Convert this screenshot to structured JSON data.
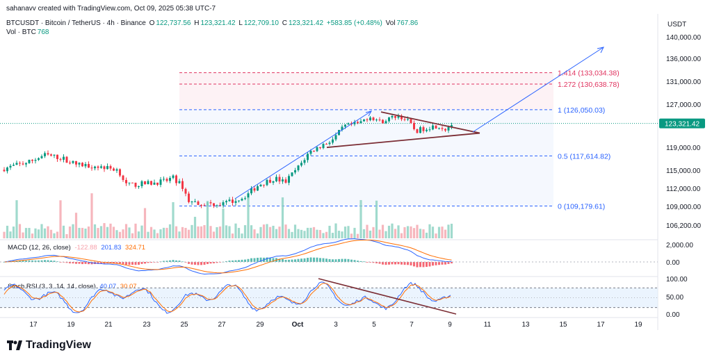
{
  "credit": "sahanavv created with TradingView.com, Oct 09, 2025 05:38 UTC-7",
  "header": {
    "symbol": "BTCUSDT · Bitcoin / TetherUS · 4h · Binance",
    "o_label": "O",
    "o": "122,737.56",
    "h_label": "H",
    "h": "123,321.42",
    "l_label": "L",
    "l": "122,709.10",
    "c_label": "C",
    "c": "123,321.42",
    "change": "+583.85 (+0.48%)",
    "vol_label": "Vol",
    "vol": "767.86",
    "vol2_label": "Vol · BTC",
    "vol2": "768"
  },
  "axis_currency": "USDT",
  "price_tag": "123,321.42",
  "colors": {
    "up": "#089981",
    "down": "#f23645",
    "trend": "#7b2d34",
    "arrow": "#2962ff",
    "fib_blue": "#2962ff",
    "fib_red": "#e0325e"
  },
  "macd": {
    "label": "MACD (12, 26, close)",
    "v1": "-122.88",
    "v2": "201.83",
    "v3": "324.71"
  },
  "stoch": {
    "label": "Stoch RSI (3, 3, 14, 14, close)",
    "v1": "40.07",
    "v2": "30.07"
  },
  "brand": "TradingView",
  "chart_data": {
    "type": "candlestick",
    "price_ticks": [
      "140,000.00",
      "136,000.00",
      "131,000.00",
      "127,000.00",
      "123,000.00",
      "119,000.00",
      "115,000.00",
      "112,000.00",
      "109,000.00",
      "106,200.00"
    ],
    "macd_ticks": [
      "2,000.00",
      "0.00"
    ],
    "stoch_ticks": [
      "100.00",
      "50.00",
      "0.00"
    ],
    "x_ticks": [
      "17",
      "19",
      "21",
      "23",
      "25",
      "27",
      "29",
      "Oct",
      "3",
      "5",
      "7",
      "9",
      "11",
      "13",
      "15",
      "17",
      "19"
    ],
    "fib_levels": [
      {
        "ratio": "1.414",
        "label": "1.414 (133,034.38)",
        "price": 133034.38
      },
      {
        "ratio": "1.272",
        "label": "1.272 (130,638.78)",
        "price": 130638.78
      },
      {
        "ratio": "1",
        "label": "1 (126,050.03)",
        "price": 126050.03
      },
      {
        "ratio": "0.5",
        "label": "0.5 (117,614.82)",
        "price": 117614.82
      },
      {
        "ratio": "0",
        "label": "0 (109,179.61)",
        "price": 109179.61
      }
    ],
    "last_close": 123321.42,
    "pattern": "symmetrical triangle with projected breakout arrow",
    "oscillator_trendline": "descending"
  }
}
